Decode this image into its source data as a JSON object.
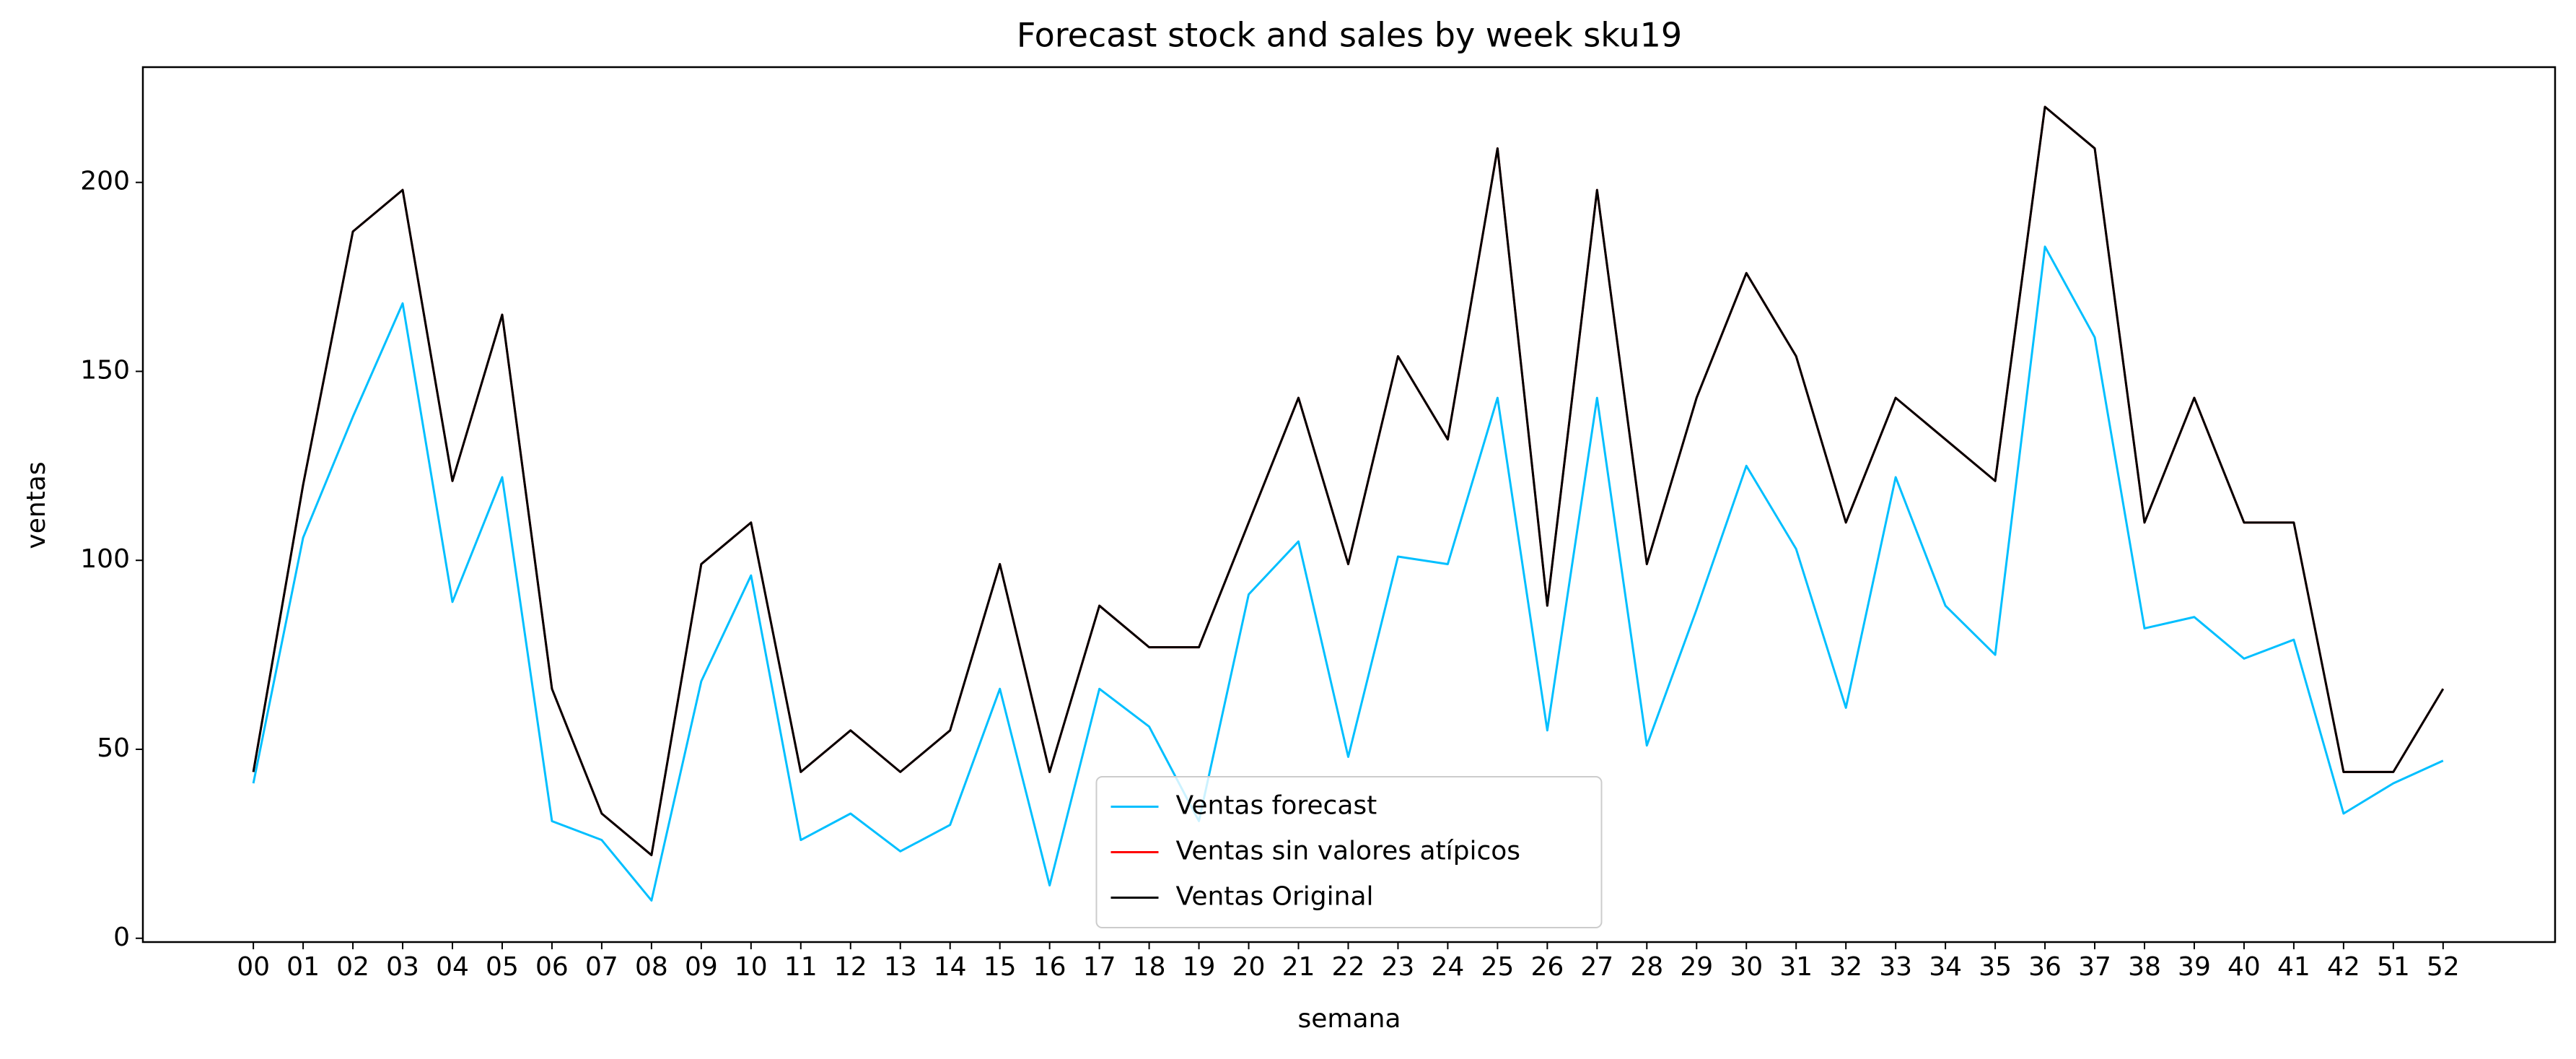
{
  "chart_data": {
    "type": "line",
    "title": "Forecast stock and sales by week sku19",
    "x_label": "semana",
    "y_label": "ventas",
    "categories": [
      "00",
      "01",
      "02",
      "03",
      "04",
      "05",
      "06",
      "07",
      "08",
      "09",
      "10",
      "11",
      "12",
      "13",
      "14",
      "15",
      "16",
      "17",
      "18",
      "19",
      "20",
      "21",
      "22",
      "23",
      "24",
      "25",
      "26",
      "27",
      "28",
      "29",
      "30",
      "31",
      "32",
      "33",
      "34",
      "35",
      "36",
      "37",
      "38",
      "39",
      "40",
      "41",
      "42",
      "51",
      "52"
    ],
    "series": [
      {
        "name": "Ventas forecast",
        "color": "#00bfff",
        "values": [
          41,
          106,
          138,
          168,
          89,
          122,
          31,
          26,
          10,
          68,
          96,
          26,
          33,
          23,
          30,
          66,
          14,
          66,
          56,
          31,
          91,
          105,
          48,
          101,
          99,
          143,
          55,
          143,
          51,
          87,
          125,
          103,
          61,
          122,
          88,
          75,
          183,
          159,
          82,
          85,
          74,
          79,
          33,
          41,
          47
        ]
      },
      {
        "name": "Ventas sin valores atípicos",
        "color": "#ff0000",
        "values": [
          44,
          120,
          187,
          198,
          121,
          165,
          66,
          33,
          22,
          99,
          110,
          44,
          55,
          44,
          55,
          99,
          44,
          88,
          77,
          77,
          110,
          143,
          99,
          154,
          132,
          209,
          88,
          198,
          99,
          143,
          176,
          154,
          110,
          143,
          132,
          121,
          220,
          209,
          110,
          143,
          110,
          110,
          44,
          44,
          66
        ]
      },
      {
        "name": "Ventas Original",
        "color": "#000000",
        "values": [
          44,
          120,
          187,
          198,
          121,
          165,
          66,
          33,
          22,
          99,
          110,
          44,
          55,
          44,
          55,
          99,
          44,
          88,
          77,
          77,
          110,
          143,
          99,
          154,
          132,
          209,
          88,
          198,
          99,
          143,
          176,
          154,
          110,
          143,
          132,
          121,
          220,
          209,
          110,
          143,
          110,
          110,
          44,
          44,
          66
        ]
      }
    ],
    "ylim": [
      -1,
      230.5
    ],
    "yticks": [
      0,
      50,
      100,
      150,
      200
    ],
    "legend": "lower center"
  }
}
